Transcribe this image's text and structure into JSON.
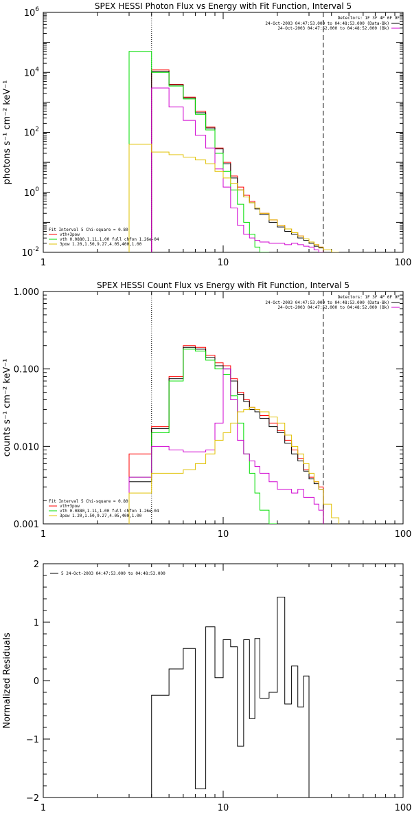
{
  "chart_data": [
    {
      "type": "line",
      "title": "SPEX HESSI Photon Flux vs Energy with Fit Function, Interval 5",
      "ylabel": "photons s⁻¹ cm⁻² keV⁻¹",
      "xlim": [
        1,
        100
      ],
      "ylim": [
        0.01,
        1000000
      ],
      "xscale": "log",
      "yscale": "log",
      "x_ticklabels": [
        "1",
        "10",
        "100"
      ],
      "y_ticks": [
        {
          "v": 0.01,
          "base": "10",
          "exp": "-2"
        },
        {
          "v": 1,
          "base": "10",
          "exp": "0"
        },
        {
          "v": 100,
          "base": "10",
          "exp": "2"
        },
        {
          "v": 10000,
          "base": "10",
          "exp": "4"
        },
        {
          "v": 1000000,
          "base": "10",
          "exp": "6"
        }
      ],
      "vlines": [
        {
          "x": 4.0,
          "style": "dotted"
        },
        {
          "x": 36.0,
          "style": "dashed"
        }
      ],
      "detectors_label": "Detectors: 1F 3F 4F 6F 9F",
      "right_legend": [
        {
          "text": "24-Oct-2003 04:47:53.000 to 04:48:53.000 (Data-Bk)",
          "color": "#000000"
        },
        {
          "text": "24-Oct-2003 04:47:52.000 to 04:48:52.000 (Bk)",
          "color": "#d000d0"
        }
      ],
      "left_legend": [
        {
          "text": "Fit Interval 5   Chi-square = 0.80",
          "color": null
        },
        {
          "text": "vth+3pow",
          "color": "#ff0000"
        },
        {
          "text": "vth 0.0880,1.11,1.00  full chfon 1.26e-04",
          "color": "#00dd00"
        },
        {
          "text": "3pow 1.20,1.50,9.27,4.05,400,1.00",
          "color": "#e0c000"
        }
      ],
      "edges": [
        4.0,
        4.5,
        5.0,
        5.5,
        6.0,
        6.5,
        7.0,
        7.5,
        8.0,
        8.5,
        9.0,
        10.0,
        11.0,
        12.0,
        13.0,
        14.0,
        15.0,
        16.0,
        18.0,
        20.0,
        22.0,
        24.0,
        26.0,
        28.0,
        30.0,
        32.0,
        34.0,
        36.0
      ],
      "series": [
        {
          "name": "vth+3pow",
          "color": "#ff0000",
          "steps": true,
          "values": [
            12000,
            12000,
            4000,
            4000,
            1500,
            1500,
            500,
            500,
            150,
            150,
            30,
            10,
            3.5,
            1.5,
            0.8,
            0.5,
            0.3,
            0.2,
            0.12,
            0.08,
            0.06,
            0.045,
            0.035,
            0.028,
            0.022,
            0.018,
            0.015
          ]
        },
        {
          "color": "#000000",
          "steps": true,
          "values": [
            11000,
            11000,
            3800,
            3800,
            1400,
            1400,
            450,
            450,
            140,
            140,
            28,
            9,
            3,
            1.2,
            0.7,
            0.45,
            0.28,
            0.18,
            0.1,
            0.07,
            0.05,
            0.04,
            0.03,
            0.025,
            0.02,
            0.016,
            0.014
          ]
        },
        {
          "color": "#00dd00",
          "steps": true,
          "extra_left": {
            "x0": 3.0,
            "x1": 4.0,
            "y": 50000
          },
          "values": [
            10000,
            10000,
            3500,
            3500,
            1300,
            1300,
            400,
            400,
            120,
            120,
            20,
            5,
            1.2,
            0.4,
            0.1,
            0.04,
            0.015,
            0.01
          ]
        },
        {
          "color": "#d000d0",
          "steps": true,
          "values": [
            3000,
            3000,
            700,
            700,
            250,
            250,
            80,
            80,
            30,
            30,
            6,
            1.5,
            0.3,
            0.08,
            0.04,
            0.03,
            0.025,
            0.022,
            0.02,
            0.02,
            0.018,
            0.02,
            0.018,
            0.016,
            0.015,
            0.012,
            0.01
          ]
        },
        {
          "color": "#e0c000",
          "steps": true,
          "extra_left": {
            "x0": 3.0,
            "x1": 4.0,
            "y": 40
          },
          "extra_right": [
            {
              "x0": 36.0,
              "x1": 40.0,
              "y": 0.012
            },
            {
              "x0": 40.0,
              "x1": 44.0,
              "y": 0.01
            }
          ],
          "values": [
            22,
            22,
            18,
            18,
            15,
            15,
            12,
            12,
            9,
            9,
            5,
            3,
            2,
            1.2,
            0.7,
            0.45,
            0.3,
            0.2,
            0.12,
            0.08,
            0.06,
            0.045,
            0.035,
            0.028,
            0.022,
            0.018,
            0.015
          ]
        }
      ]
    },
    {
      "type": "line",
      "title": "SPEX HESSI Count Flux vs Energy with Fit Function, Interval 5",
      "ylabel": "counts s⁻¹ cm⁻² keV⁻¹",
      "xlim": [
        1,
        100
      ],
      "ylim": [
        0.001,
        1.0
      ],
      "xscale": "log",
      "yscale": "log",
      "x_ticklabels": [
        "1",
        "10",
        "100"
      ],
      "y_ticks": [
        {
          "v": 0.001,
          "label": "0.001"
        },
        {
          "v": 0.01,
          "label": "0.010"
        },
        {
          "v": 0.1,
          "label": "0.100"
        },
        {
          "v": 1.0,
          "label": "1.000"
        }
      ],
      "vlines": [
        {
          "x": 4.0,
          "style": "dotted"
        },
        {
          "x": 36.0,
          "style": "dashed"
        }
      ],
      "detectors_label": "Detectors: 1F 3F 4F 6F 9F",
      "right_legend": [
        {
          "text": "24-Oct-2003 04:47:53.000 to 04:48:53.000 (Data-Bk)",
          "color": "#000000"
        },
        {
          "text": "24-Oct-2003 04:47:52.000 to 04:48:52.000 (Bk)",
          "color": "#d000d0"
        }
      ],
      "left_legend": [
        {
          "text": "Fit Interval 5   Chi-square = 0.80",
          "color": null
        },
        {
          "text": "vth+3pow",
          "color": "#ff0000"
        },
        {
          "text": "vth 0.0880,1.11,1.00  full chfon 1.26e-04",
          "color": "#00dd00"
        },
        {
          "text": "3pow 1.20,1.50,9.27,4.05,400,1.00",
          "color": "#e0c000"
        }
      ],
      "edges": [
        3.0,
        4.0,
        5.0,
        6.0,
        7.0,
        8.0,
        9.0,
        10.0,
        11.0,
        12.0,
        13.0,
        14.0,
        15.0,
        16.0,
        18.0,
        20.0,
        22.0,
        24.0,
        26.0,
        28.0,
        30.0,
        32.0,
        34.0,
        36.0
      ],
      "series": [
        {
          "name": "vth+3pow",
          "color": "#ff0000",
          "steps": true,
          "values": [
            0.008,
            0.018,
            0.08,
            0.2,
            0.19,
            0.15,
            0.12,
            0.11,
            0.075,
            0.05,
            0.04,
            0.032,
            0.03,
            0.025,
            0.02,
            0.016,
            0.012,
            0.009,
            0.007,
            0.005,
            0.004,
            0.0035,
            0.003
          ]
        },
        {
          "color": "#000000",
          "steps": true,
          "values": [
            0.0035,
            0.017,
            0.075,
            0.19,
            0.18,
            0.14,
            0.11,
            0.1,
            0.07,
            0.047,
            0.038,
            0.03,
            0.028,
            0.023,
            0.018,
            0.015,
            0.011,
            0.008,
            0.0065,
            0.0048,
            0.0038,
            0.0033,
            0.0028
          ]
        },
        {
          "color": "#00dd00",
          "steps": true,
          "values": [
            0.004,
            0.015,
            0.07,
            0.18,
            0.17,
            0.13,
            0.1,
            0.085,
            0.045,
            0.02,
            0.008,
            0.0045,
            0.0025,
            0.0015,
            0.001
          ]
        },
        {
          "color": "#d000d0",
          "steps": true,
          "values": [
            0.004,
            0.01,
            0.009,
            0.0085,
            0.0085,
            0.009,
            0.02,
            0.1,
            0.04,
            0.012,
            0.008,
            0.0065,
            0.0055,
            0.0045,
            0.0035,
            0.0028,
            0.0028,
            0.0025,
            0.0028,
            0.0022,
            0.0022,
            0.0018,
            0.0015
          ]
        },
        {
          "color": "#e0c000",
          "steps": true,
          "extra_right": [
            {
              "x0": 36.0,
              "x1": 40.0,
              "y": 0.0018
            },
            {
              "x0": 40.0,
              "x1": 44.0,
              "y": 0.0012
            }
          ],
          "values": [
            0.0025,
            0.0045,
            0.0045,
            0.005,
            0.006,
            0.008,
            0.012,
            0.015,
            0.02,
            0.028,
            0.03,
            0.032,
            0.03,
            0.028,
            0.024,
            0.02,
            0.014,
            0.01,
            0.008,
            0.006,
            0.0045,
            0.0035,
            0.0028
          ]
        }
      ]
    },
    {
      "type": "line",
      "title": "",
      "ylabel": "Normalized Residuals",
      "xlim": [
        1,
        100
      ],
      "ylim": [
        -2,
        2
      ],
      "xscale": "log",
      "yscale": "linear",
      "x_ticklabels": [
        "1",
        "10",
        "100"
      ],
      "y_ticks": [
        {
          "v": -2,
          "label": "−2"
        },
        {
          "v": -1,
          "label": "−1"
        },
        {
          "v": 0,
          "label": "0"
        },
        {
          "v": 1,
          "label": "1"
        },
        {
          "v": 2,
          "label": "2"
        }
      ],
      "left_legend": [
        {
          "text": "5  24-Oct-2003 04:47:53.000 to 04:48:53.000",
          "color": "#000000"
        }
      ],
      "edges": [
        4.0,
        5.0,
        6.0,
        7.0,
        8.0,
        9.0,
        10.0,
        11.0,
        12.0,
        13.0,
        14.0,
        15.0,
        16.0,
        18.0,
        20.0,
        22.0,
        24.0,
        26.0,
        28.0,
        30.0,
        32.0,
        34.0,
        36.0
      ],
      "series": [
        {
          "color": "#000000",
          "steps": true,
          "drop_to_bottom": true,
          "values": [
            -0.25,
            0.2,
            0.55,
            -1.85,
            0.92,
            0.05,
            0.7,
            0.58,
            -1.12,
            0.7,
            -0.65,
            0.72,
            -0.3,
            -0.2,
            1.43,
            -0.4,
            0.25,
            -0.45,
            0.08
          ]
        }
      ]
    }
  ]
}
